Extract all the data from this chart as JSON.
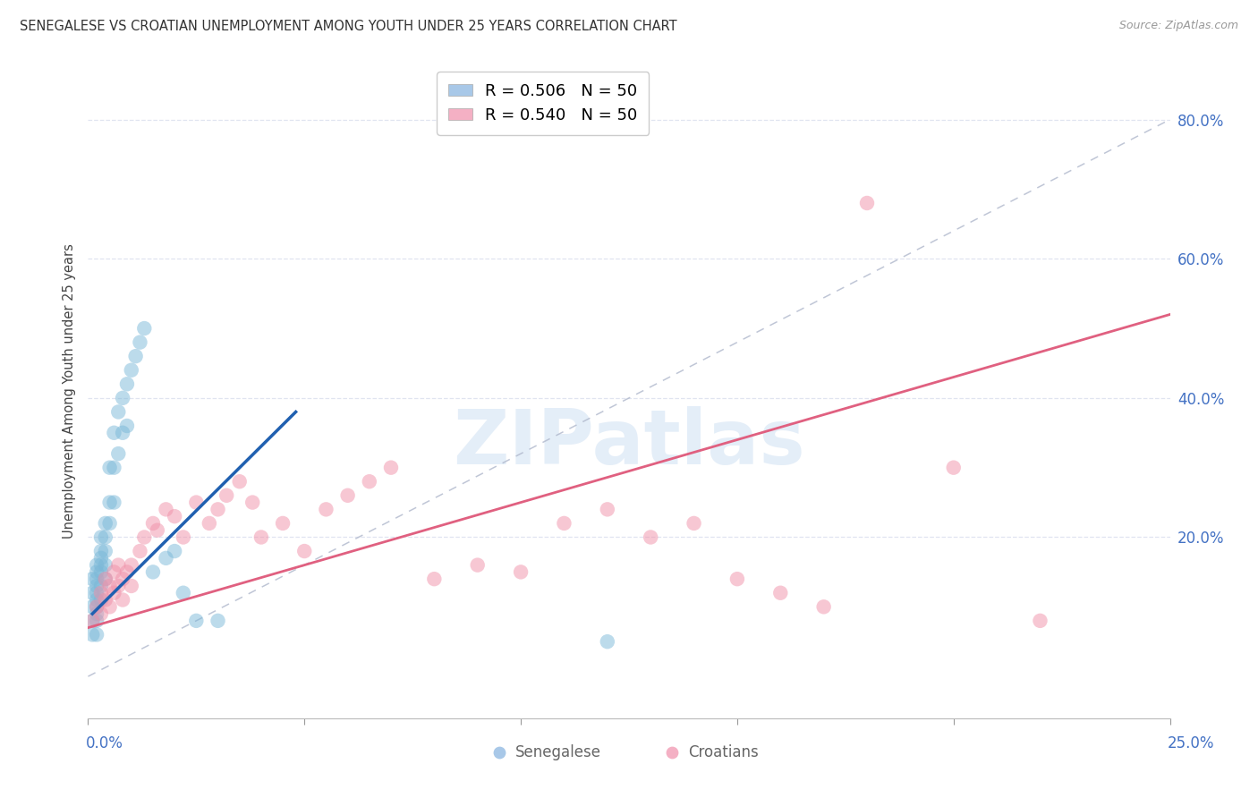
{
  "title": "SENEGALESE VS CROATIAN UNEMPLOYMENT AMONG YOUTH UNDER 25 YEARS CORRELATION CHART",
  "source": "Source: ZipAtlas.com",
  "ylabel": "Unemployment Among Youth under 25 years",
  "right_yticks": [
    "80.0%",
    "60.0%",
    "40.0%",
    "20.0%"
  ],
  "right_ytick_vals": [
    0.8,
    0.6,
    0.4,
    0.2
  ],
  "legend_entries": [
    {
      "label": "R = 0.506   N = 50",
      "facecolor": "#a8c8e8"
    },
    {
      "label": "R = 0.540   N = 50",
      "facecolor": "#f4b0c4"
    }
  ],
  "watermark_text": "ZIPatlas",
  "senegalese_x": [
    0.001,
    0.001,
    0.001,
    0.001,
    0.001,
    0.002,
    0.002,
    0.002,
    0.002,
    0.002,
    0.002,
    0.002,
    0.002,
    0.002,
    0.002,
    0.003,
    0.003,
    0.003,
    0.003,
    0.003,
    0.003,
    0.003,
    0.004,
    0.004,
    0.004,
    0.004,
    0.004,
    0.005,
    0.005,
    0.005,
    0.006,
    0.006,
    0.006,
    0.007,
    0.007,
    0.008,
    0.008,
    0.009,
    0.009,
    0.01,
    0.011,
    0.012,
    0.013,
    0.015,
    0.018,
    0.02,
    0.022,
    0.025,
    0.03,
    0.12
  ],
  "senegalese_y": [
    0.14,
    0.12,
    0.1,
    0.08,
    0.06,
    0.16,
    0.15,
    0.14,
    0.13,
    0.12,
    0.11,
    0.1,
    0.09,
    0.08,
    0.06,
    0.2,
    0.18,
    0.17,
    0.16,
    0.15,
    0.13,
    0.11,
    0.22,
    0.2,
    0.18,
    0.16,
    0.14,
    0.3,
    0.25,
    0.22,
    0.35,
    0.3,
    0.25,
    0.38,
    0.32,
    0.4,
    0.35,
    0.42,
    0.36,
    0.44,
    0.46,
    0.48,
    0.5,
    0.15,
    0.17,
    0.18,
    0.12,
    0.08,
    0.08,
    0.05
  ],
  "croatian_x": [
    0.001,
    0.002,
    0.003,
    0.003,
    0.004,
    0.004,
    0.005,
    0.005,
    0.006,
    0.006,
    0.007,
    0.007,
    0.008,
    0.008,
    0.009,
    0.01,
    0.01,
    0.012,
    0.013,
    0.015,
    0.016,
    0.018,
    0.02,
    0.022,
    0.025,
    0.028,
    0.03,
    0.032,
    0.035,
    0.038,
    0.04,
    0.045,
    0.05,
    0.055,
    0.06,
    0.065,
    0.07,
    0.08,
    0.09,
    0.1,
    0.11,
    0.12,
    0.13,
    0.14,
    0.15,
    0.16,
    0.17,
    0.18,
    0.2,
    0.22
  ],
  "croatian_y": [
    0.08,
    0.1,
    0.12,
    0.09,
    0.14,
    0.11,
    0.13,
    0.1,
    0.15,
    0.12,
    0.16,
    0.13,
    0.14,
    0.11,
    0.15,
    0.16,
    0.13,
    0.18,
    0.2,
    0.22,
    0.21,
    0.24,
    0.23,
    0.2,
    0.25,
    0.22,
    0.24,
    0.26,
    0.28,
    0.25,
    0.2,
    0.22,
    0.18,
    0.24,
    0.26,
    0.28,
    0.3,
    0.14,
    0.16,
    0.15,
    0.22,
    0.24,
    0.2,
    0.22,
    0.14,
    0.12,
    0.1,
    0.68,
    0.3,
    0.08
  ],
  "sene_line_x": [
    0.001,
    0.048
  ],
  "sene_line_y": [
    0.09,
    0.38
  ],
  "cro_line_x": [
    0.0,
    0.25
  ],
  "cro_line_y": [
    0.07,
    0.52
  ],
  "dash_line_x": [
    0.0,
    0.25
  ],
  "dash_line_y": [
    0.0,
    0.8
  ],
  "scatter_color_sene": "#7ab8d8",
  "scatter_color_cro": "#f090a8",
  "line_color_sene": "#2060b0",
  "line_color_cro": "#e06080",
  "dash_color": "#b0b8cc",
  "grid_color": "#e0e4f0",
  "bg_color": "#ffffff",
  "xlim": [
    0.0,
    0.25
  ],
  "ylim": [
    -0.06,
    0.88
  ]
}
